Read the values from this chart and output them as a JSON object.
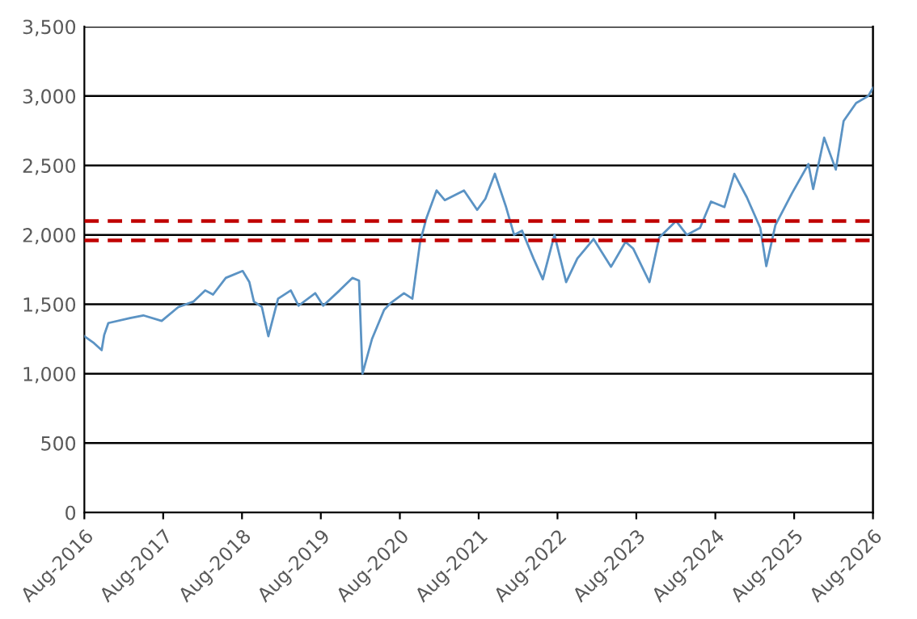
{
  "chart_data": {
    "type": "line",
    "x": [
      "2016-08-01",
      "2016-09-15",
      "2016-10-20",
      "2016-11-01",
      "2016-11-20",
      "2017-02-28",
      "2017-05-01",
      "2017-07-25",
      "2017-10-10",
      "2017-12-20",
      "2018-02-12",
      "2018-03-20",
      "2018-05-18",
      "2018-08-04",
      "2018-09-04",
      "2018-09-25",
      "2018-11-01",
      "2018-12-01",
      "2019-01-15",
      "2019-03-15",
      "2019-04-20",
      "2019-07-06",
      "2019-08-12",
      "2019-10-27",
      "2019-12-25",
      "2020-01-25",
      "2020-02-10",
      "2020-03-25",
      "2020-05-20",
      "2020-06-20",
      "2020-08-20",
      "2020-09-28",
      "2020-11-03",
      "2020-12-03",
      "2021-01-18",
      "2021-02-25",
      "2021-05-25",
      "2021-07-25",
      "2021-09-01",
      "2021-10-15",
      "2021-12-06",
      "2022-01-12",
      "2022-02-18",
      "2022-04-12",
      "2022-05-25",
      "2022-07-18",
      "2022-09-10",
      "2022-11-01",
      "2023-01-15",
      "2023-04-06",
      "2023-06-12",
      "2023-07-18",
      "2023-10-01",
      "2023-11-15",
      "2024-02-01",
      "2024-03-22",
      "2024-05-22",
      "2024-07-12",
      "2024-09-12",
      "2024-10-28",
      "2024-12-25",
      "2025-02-25",
      "2025-03-25",
      "2025-05-06",
      "2025-07-22",
      "2025-10-06",
      "2025-10-28",
      "2025-12-18",
      "2026-02-10",
      "2026-03-18",
      "2026-05-15",
      "2026-07-10",
      "2026-08-01"
    ],
    "series": [
      {
        "color": "#5b93c4",
        "values": [
          1270,
          1220,
          1170,
          1280,
          1365,
          1400,
          1420,
          1380,
          1480,
          1520,
          1600,
          1570,
          1690,
          1740,
          1660,
          1520,
          1480,
          1270,
          1540,
          1600,
          1490,
          1580,
          1490,
          1600,
          1690,
          1670,
          1000,
          1250,
          1460,
          1510,
          1580,
          1540,
          1950,
          2125,
          2320,
          2250,
          2320,
          2180,
          2260,
          2440,
          2200,
          2000,
          2030,
          1830,
          1680,
          2000,
          1660,
          1830,
          1970,
          1770,
          1950,
          1900,
          1660,
          1980,
          2100,
          2000,
          2050,
          2240,
          2200,
          2440,
          2270,
          2050,
          1775,
          2070,
          2300,
          2510,
          2330,
          2700,
          2470,
          2820,
          2950,
          3000,
          3060
        ]
      }
    ],
    "xlim": [
      "2016-08-01",
      "2026-08-01"
    ],
    "xticks": [
      {
        "value": "2016-08-01",
        "label": "Aug-2016"
      },
      {
        "value": "2017-08-01",
        "label": "Aug-2017"
      },
      {
        "value": "2018-08-01",
        "label": "Aug-2018"
      },
      {
        "value": "2019-08-01",
        "label": "Aug-2019"
      },
      {
        "value": "2020-08-01",
        "label": "Aug-2020"
      },
      {
        "value": "2021-08-01",
        "label": "Aug-2021"
      },
      {
        "value": "2022-08-01",
        "label": "Aug-2022"
      },
      {
        "value": "2023-08-01",
        "label": "Aug-2023"
      },
      {
        "value": "2024-08-01",
        "label": "Aug-2024"
      },
      {
        "value": "2025-08-01",
        "label": "Aug-2025"
      },
      {
        "value": "2026-08-01",
        "label": "Aug-2026"
      }
    ],
    "ylim": [
      0,
      3500
    ],
    "yticks": [
      {
        "value": 0,
        "label": "0"
      },
      {
        "value": 500,
        "label": "500"
      },
      {
        "value": 1000,
        "label": "1,000"
      },
      {
        "value": 1500,
        "label": "1,500"
      },
      {
        "value": 2000,
        "label": "2,000"
      },
      {
        "value": 2500,
        "label": "2,500"
      },
      {
        "value": 3000,
        "label": "3,000"
      },
      {
        "value": 3500,
        "label": "3,500"
      }
    ],
    "grid": "y",
    "ref_lines": [
      {
        "axis": "y",
        "value": 2100,
        "color": "#c00000",
        "line_style": "dashed"
      },
      {
        "axis": "y",
        "value": 1960,
        "color": "#c00000",
        "line_style": "dashed"
      }
    ],
    "line_style": "solid",
    "marker": "none",
    "legend": false
  }
}
